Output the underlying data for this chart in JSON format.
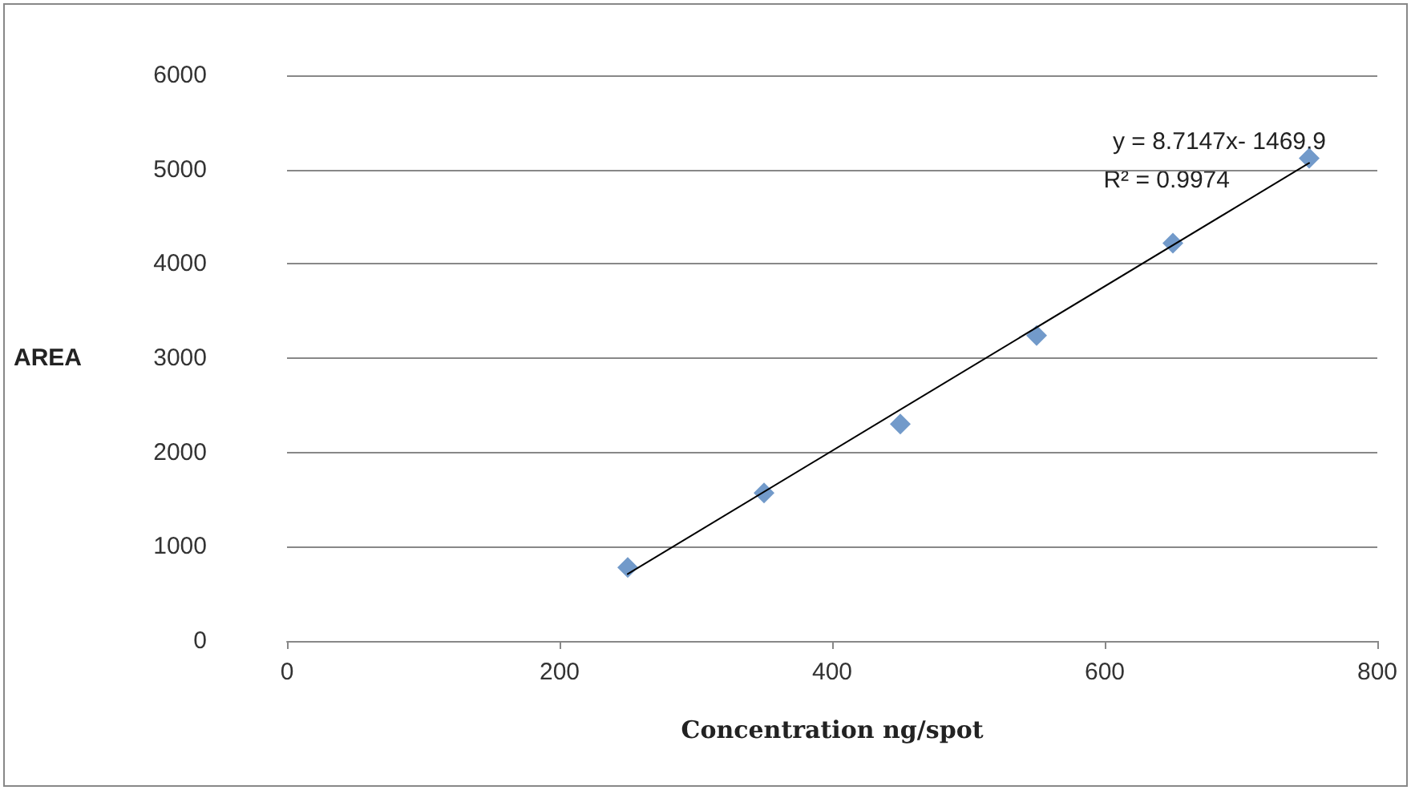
{
  "chart_data": {
    "type": "scatter",
    "xlabel": "Concentration ng/spot",
    "ylabel": "AREA",
    "annotations": [
      "y = 8.7147x- 1469.9",
      "R² = 0.9974"
    ],
    "series": [
      {
        "color": "#4f81bd",
        "x": [
          250,
          350,
          450,
          550,
          650,
          750
        ],
        "values": [
          780,
          1570,
          2300,
          3240,
          4220,
          5120
        ]
      },
      {
        "type": "line",
        "color": "#000000",
        "marker": "none",
        "x": [
          250,
          750
        ],
        "values": [
          710,
          5070
        ]
      }
    ],
    "xlim": [
      0,
      800
    ],
    "xticks": [
      0,
      200,
      400,
      600,
      800
    ],
    "ylim": [
      0,
      6000
    ],
    "yticks": [
      0,
      1000,
      2000,
      3000,
      4000,
      5000,
      6000
    ],
    "grid": "y",
    "marker": "diamond",
    "line_style": "solid"
  }
}
